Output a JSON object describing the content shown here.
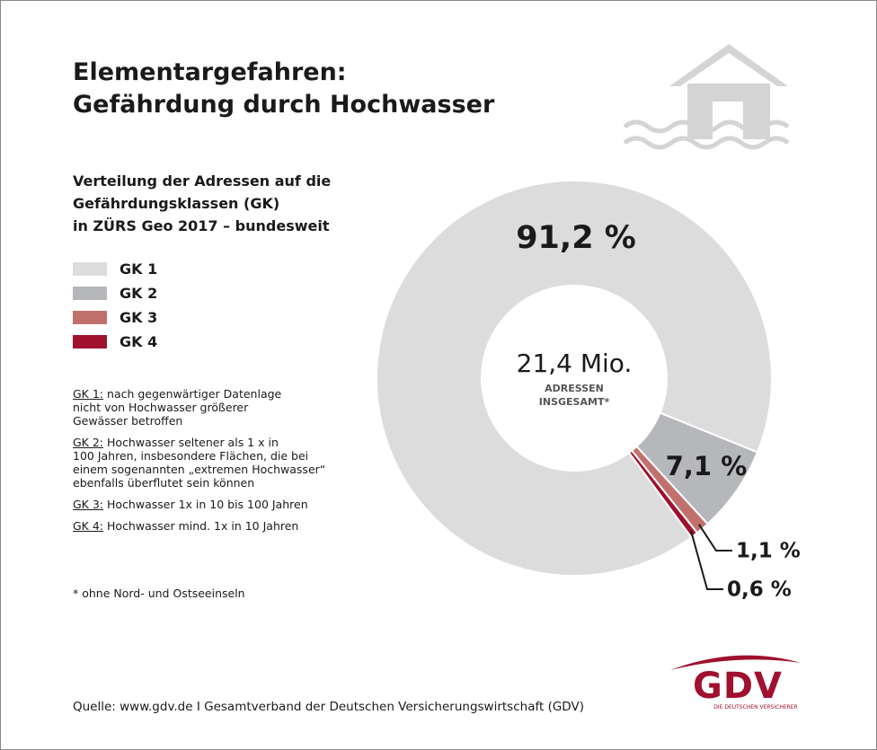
{
  "chart_data": {
    "type": "donut",
    "title": [
      "Elementargefahren:",
      "Gefährdung durch Hochwasser"
    ],
    "subtitle": [
      "Verteilung der Adressen auf die",
      "Gefährdungsklassen (GK)",
      "in ZÜRS Geo 2017 – bundesweit"
    ],
    "categories": [
      "GK 1",
      "GK 2",
      "GK 3",
      "GK 4"
    ],
    "values": [
      91.2,
      7.1,
      1.1,
      0.6
    ],
    "value_labels": [
      "91,2 %",
      "7,1 %",
      "1,1 %",
      "0,6 %"
    ],
    "colors": [
      "#dcdcdc",
      "#b5b7bb",
      "#c1716d",
      "#a0112e"
    ],
    "center_text": [
      "21,4 Mio.",
      "ADRESSEN",
      "INSGESAMT*"
    ],
    "notes": [
      {
        "term": "GK 1:",
        "lines": [
          "nach gegenwärtiger Datenlage",
          "nicht von Hochwasser größerer",
          "Gewässer betroffen"
        ]
      },
      {
        "term": "GK 2:",
        "lines": [
          "Hochwasser seltener als 1 x in",
          "100 Jahren, insbesondere Flächen, die bei",
          "einem sogenannten „extremen Hochwasser“",
          "ebenfalls überflutet sein können"
        ]
      },
      {
        "term": "GK 3:",
        "lines": [
          "Hochwasser  1x in 10 bis 100 Jahren"
        ]
      },
      {
        "term": "GK 4:",
        "lines": [
          "Hochwasser mind. 1x in 10 Jahren"
        ]
      }
    ],
    "footnote": "* ohne Nord- und Ostseeinseln",
    "source": "Quelle: www.gdv.de I Gesamtverband der Deutschen Versicherungswirtschaft (GDV)",
    "logo": {
      "name": "GDV",
      "tagline": "DIE DEUTSCHEN VERSICHERER"
    }
  }
}
